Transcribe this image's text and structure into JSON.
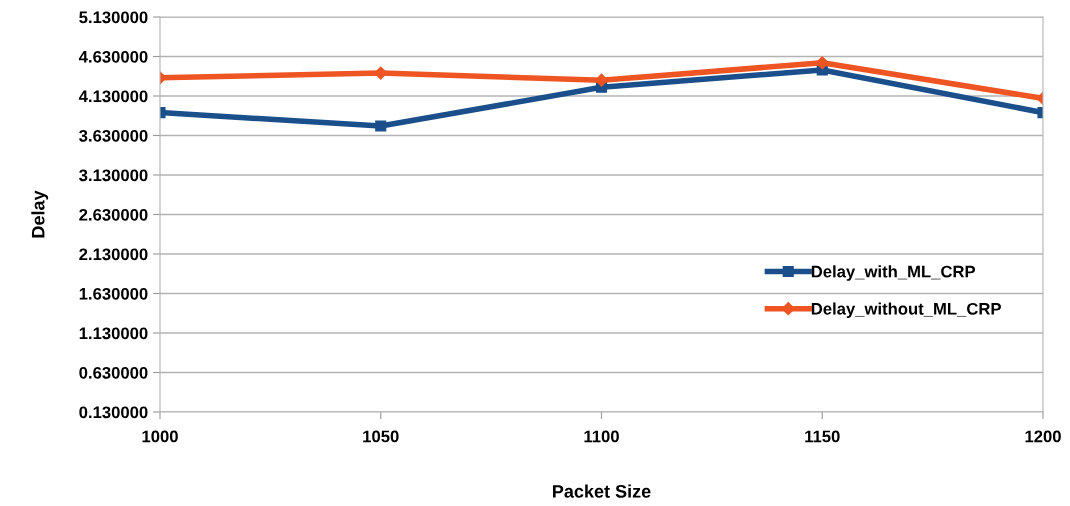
{
  "chart_data": {
    "type": "line",
    "xlabel": "Packet Size",
    "ylabel": "Delay",
    "x": [
      1000,
      1050,
      1100,
      1150,
      1200
    ],
    "series": [
      {
        "name": "Delay_with_ML_CRP",
        "color": "#1a4f8b",
        "marker": "square",
        "values": [
          3.92,
          3.75,
          4.24,
          4.46,
          3.92
        ]
      },
      {
        "name": "Delay_without_ML_CRP",
        "color": "#ee5522",
        "marker": "diamond",
        "values": [
          4.36,
          4.42,
          4.33,
          4.55,
          4.1
        ]
      }
    ],
    "xlim": [
      1000,
      1200
    ],
    "xticks": [
      1000,
      1050,
      1100,
      1150,
      1200
    ],
    "ylim": [
      0.13,
      5.13
    ],
    "yticks": [
      {
        "value": 0.13,
        "label": "0.130000"
      },
      {
        "value": 0.63,
        "label": "0.630000"
      },
      {
        "value": 1.13,
        "label": "1.130000"
      },
      {
        "value": 1.63,
        "label": "1.630000"
      },
      {
        "value": 2.13,
        "label": "2.130000"
      },
      {
        "value": 2.63,
        "label": "2.630000"
      },
      {
        "value": 3.13,
        "label": "3.130000"
      },
      {
        "value": 3.63,
        "label": "3.630000"
      },
      {
        "value": 4.13,
        "label": "4.130000"
      },
      {
        "value": 4.63,
        "label": "4.630000"
      },
      {
        "value": 5.13,
        "label": "5.130000"
      }
    ],
    "grid": "y",
    "legend": "bottom right",
    "line_style": "solid"
  }
}
